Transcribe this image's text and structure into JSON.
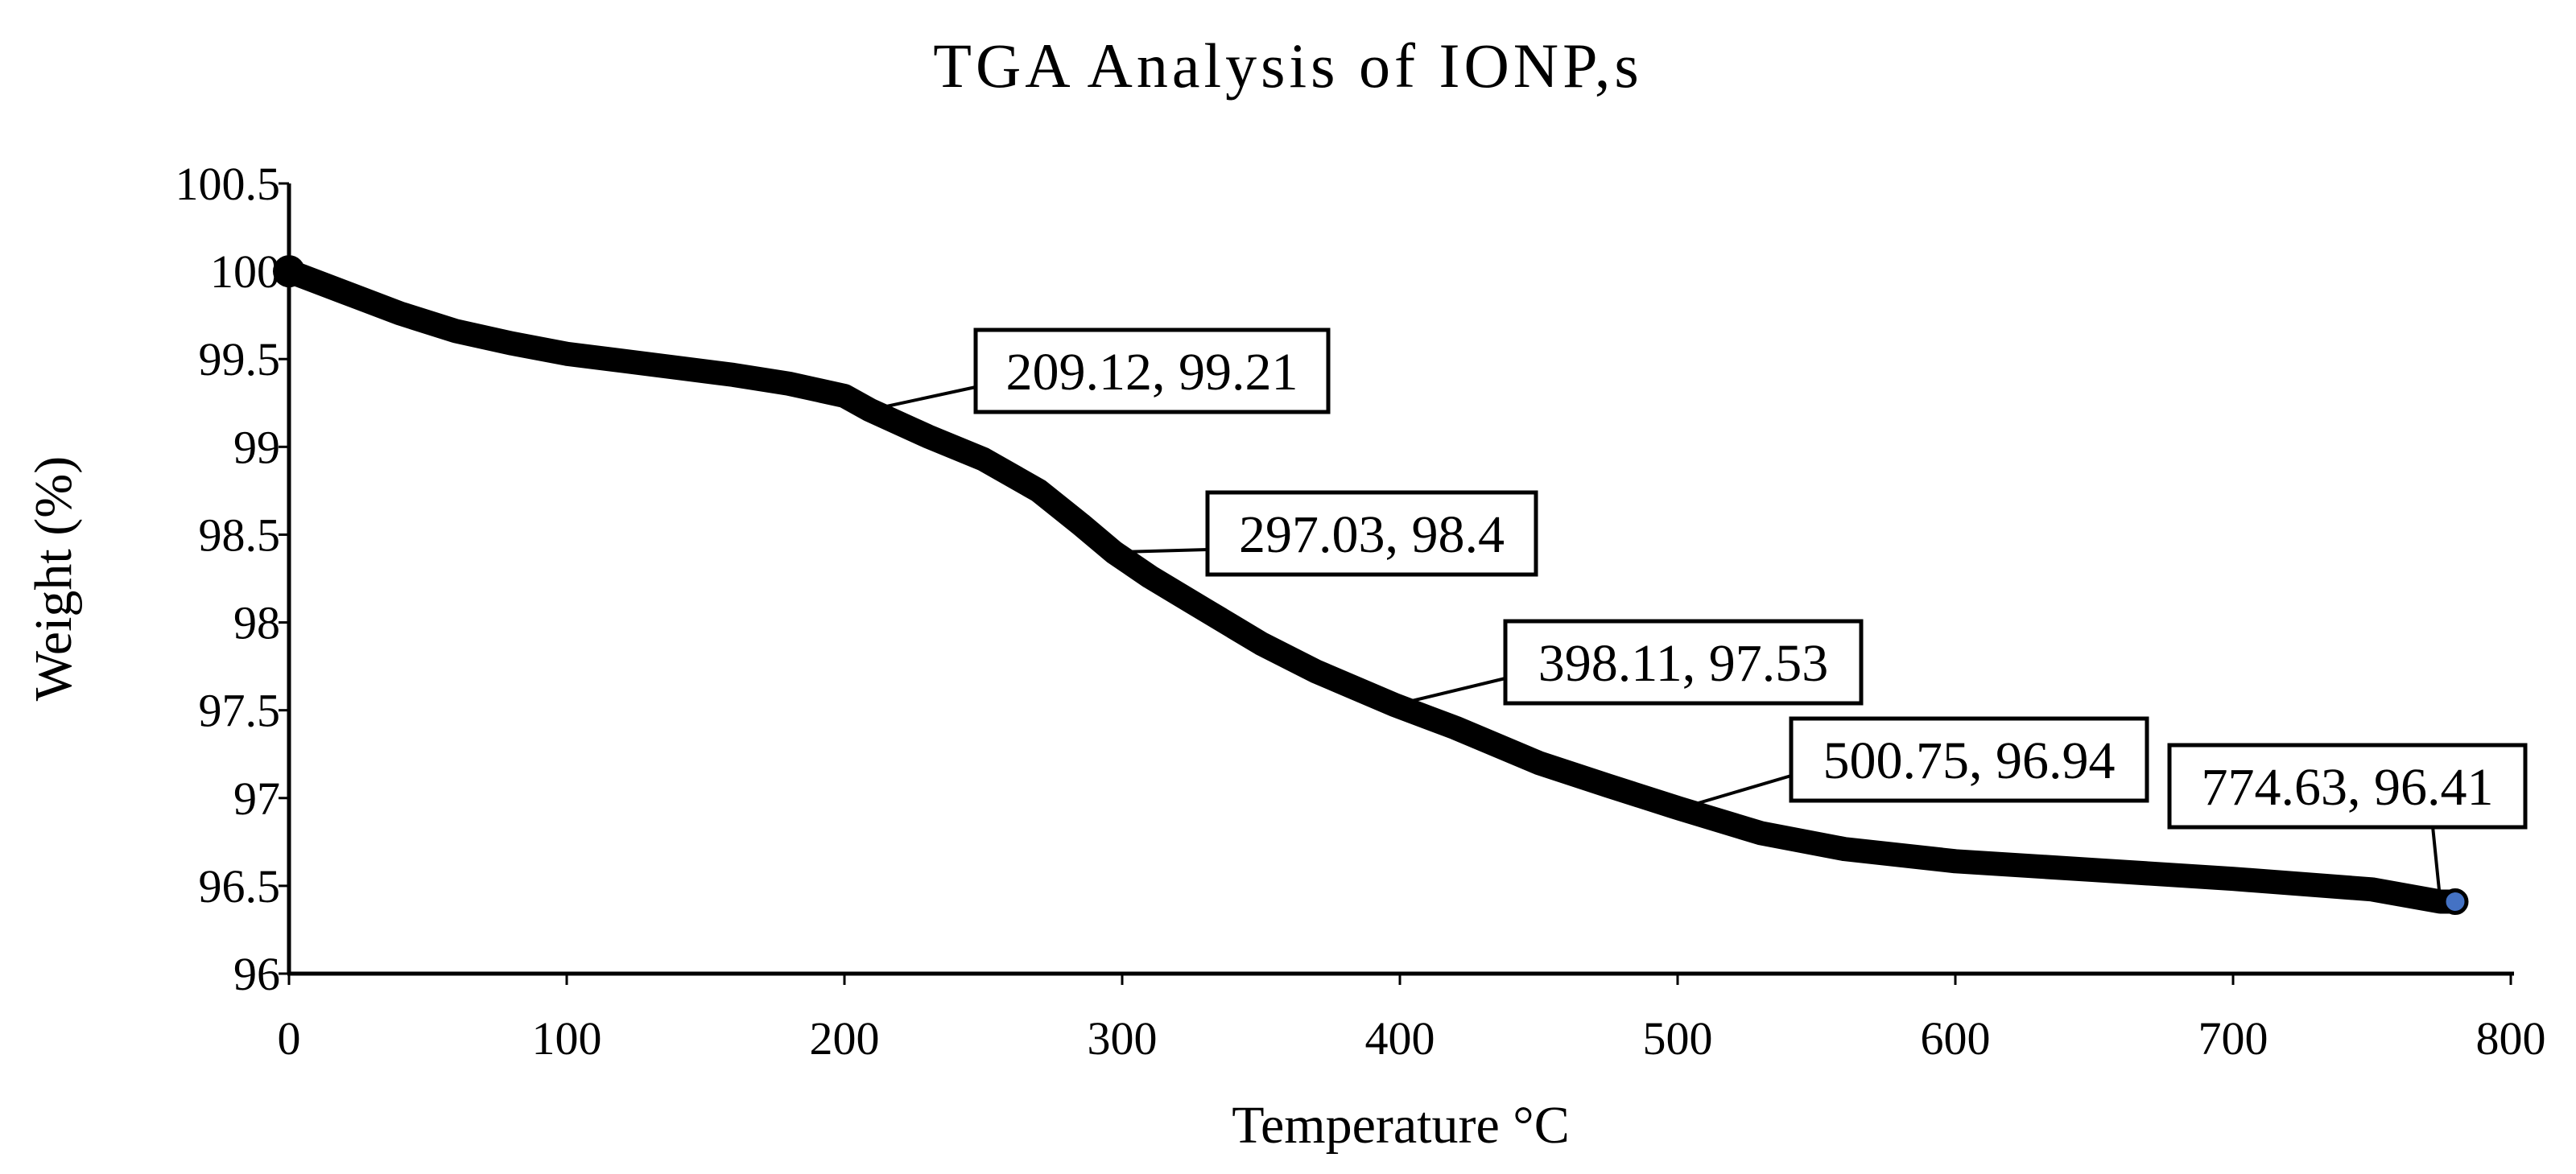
{
  "chart_data": {
    "type": "line",
    "title": "TGA Analysis of IONP,s",
    "xlabel": "Temperature °C",
    "ylabel": "Weight (%)",
    "xlim": [
      0,
      800
    ],
    "ylim": [
      96,
      100.5
    ],
    "x_ticks": [
      "0",
      "100",
      "200",
      "300",
      "400",
      "500",
      "600",
      "700",
      "800"
    ],
    "y_ticks": [
      "96",
      "96.5",
      "97",
      "97.5",
      "98",
      "98.5",
      "99",
      "99.5",
      "100",
      "100.5"
    ],
    "grid": false,
    "legend": "none",
    "series": [
      {
        "name": "Weight",
        "color": "#000000",
        "x": [
          0,
          20,
          40,
          60,
          80,
          100,
          120,
          140,
          160,
          180,
          200,
          209.12,
          230,
          250,
          270,
          285,
          297.03,
          310,
          330,
          350,
          370,
          398.11,
          420,
          450,
          475,
          500.75,
          530,
          560,
          600,
          650,
          700,
          750,
          774.63,
          780
        ],
        "y": [
          100,
          99.88,
          99.76,
          99.66,
          99.59,
          99.53,
          99.49,
          99.45,
          99.41,
          99.36,
          99.29,
          99.21,
          99.06,
          98.93,
          98.75,
          98.56,
          98.4,
          98.26,
          98.07,
          97.88,
          97.72,
          97.53,
          97.4,
          97.2,
          97.07,
          96.94,
          96.8,
          96.71,
          96.64,
          96.59,
          96.54,
          96.48,
          96.41,
          96.41
        ]
      }
    ],
    "annotations": [
      {
        "label": "209.12, 99.21",
        "x": 209.12,
        "y": 99.21
      },
      {
        "label": "297.03, 98.4",
        "x": 297.03,
        "y": 98.4
      },
      {
        "label": "398.11, 97.53",
        "x": 398.11,
        "y": 97.53
      },
      {
        "label": "500.75, 96.94",
        "x": 500.75,
        "y": 96.94
      },
      {
        "label": "774.63, 96.41",
        "x": 774.63,
        "y": 96.41
      }
    ],
    "highlight_point": {
      "x": 780,
      "y": 96.41,
      "color": "#4472C4"
    }
  }
}
